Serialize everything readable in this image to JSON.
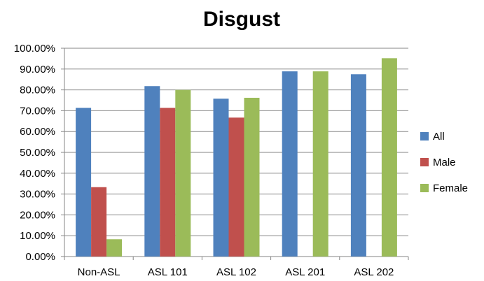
{
  "chart_data": {
    "type": "bar",
    "title": "Disgust",
    "xlabel": "",
    "ylabel": "",
    "categories": [
      "Non-ASL",
      "ASL 101",
      "ASL 102",
      "ASL 201",
      "ASL 202"
    ],
    "series": [
      {
        "name": "All",
        "color": "#4F81BD",
        "values": [
          71.4,
          81.8,
          75.8,
          88.9,
          87.5
        ]
      },
      {
        "name": "Male",
        "color": "#C0504D",
        "values": [
          33.3,
          71.4,
          66.7,
          0,
          0
        ]
      },
      {
        "name": "Female",
        "color": "#9BBB59",
        "values": [
          8.3,
          80.0,
          76.2,
          88.9,
          95.2
        ]
      }
    ],
    "ylim": [
      0,
      100
    ],
    "yticks": [
      0,
      10,
      20,
      30,
      40,
      50,
      60,
      70,
      80,
      90,
      100
    ],
    "ytick_labels": [
      "0.00%",
      "10.00%",
      "20.00%",
      "30.00%",
      "40.00%",
      "50.00%",
      "60.00%",
      "70.00%",
      "80.00%",
      "90.00%",
      "100.00%"
    ],
    "grid": true,
    "legend": "right"
  }
}
